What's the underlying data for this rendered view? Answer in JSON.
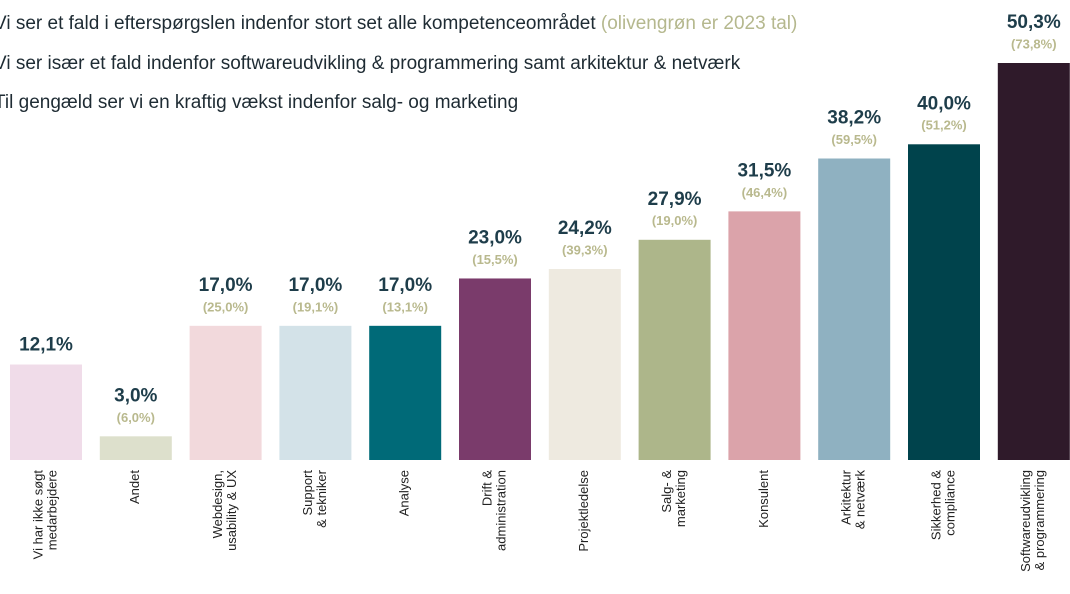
{
  "chart_data": {
    "type": "bar",
    "notes": [
      "Vi ser et fald i efterspørgslen indenfor stort set alle kompetenceområdet",
      "Vi ser især et fald indenfor softwareudvikling & programmering samt arkitektur & netværk",
      "Til gengæld ser vi en kraftig vækst indenfor salg- og marketing"
    ],
    "note_highlight": "(olivengrøn er 2023 tal)",
    "categories": [
      [
        "Vi har ikke søgt",
        "medarbejdere"
      ],
      [
        "Andet"
      ],
      [
        "Webdesign,",
        "usability & UX"
      ],
      [
        "Support",
        "& tekniker"
      ],
      [
        "Analyse"
      ],
      [
        "Drift &",
        "administration"
      ],
      [
        "Projektledelse"
      ],
      [
        "Salg- &",
        "marketing"
      ],
      [
        "Konsulent"
      ],
      [
        "Arkitektur",
        "& netværk"
      ],
      [
        "Sikkerhed &",
        "compliance"
      ],
      [
        "Softwareudvikling",
        "& programmering"
      ]
    ],
    "values": [
      12.1,
      3.0,
      17.0,
      17.0,
      17.0,
      23.0,
      24.2,
      27.9,
      31.5,
      38.2,
      40.0,
      50.3
    ],
    "value_labels": [
      "12,1%",
      "3,0%",
      "17,0%",
      "17,0%",
      "17,0%",
      "23,0%",
      "24,2%",
      "27,9%",
      "31,5%",
      "38,2%",
      "40,0%",
      "50,3%"
    ],
    "prior_values": [
      null,
      6.0,
      25.0,
      19.1,
      13.1,
      15.5,
      39.3,
      19.0,
      46.4,
      59.5,
      51.2,
      73.8
    ],
    "prior_value_labels": [
      null,
      "(6,0%)",
      "(25,0%)",
      "(19,1%)",
      "(13,1%)",
      "(15,5%)",
      "(39,3%)",
      "(19,0%)",
      "(46,4%)",
      "(59,5%)",
      "(51,2%)",
      "(73,8%)"
    ],
    "colors": [
      "#f0dce9",
      "#dde0cc",
      "#f2d9dc",
      "#d3e2e8",
      "#006a78",
      "#7a3b6b",
      "#eeeae0",
      "#adb68a",
      "#dba3aa",
      "#8fb1c1",
      "#00434c",
      "#2f1a2a"
    ]
  }
}
